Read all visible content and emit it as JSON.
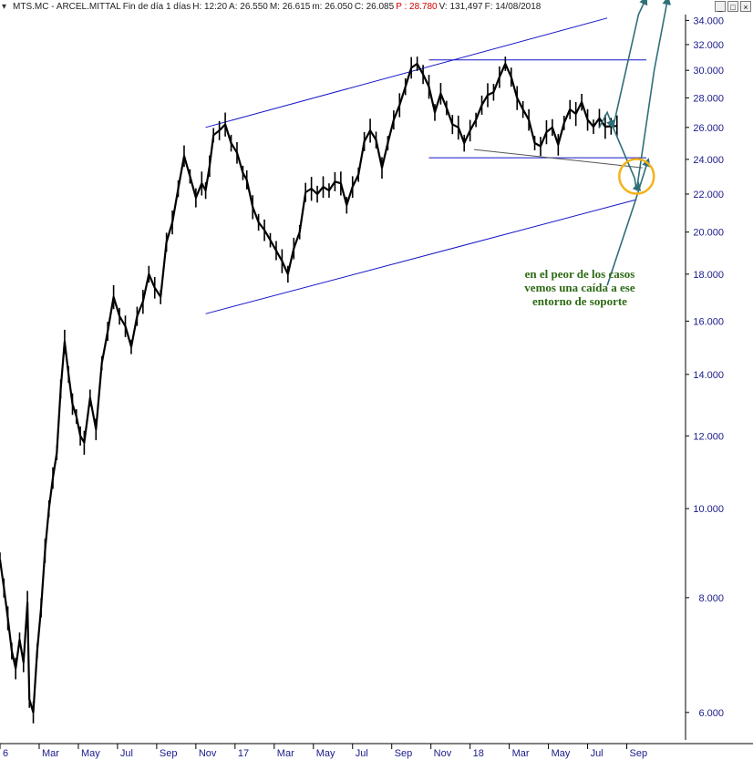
{
  "header": {
    "symbol": "MTS.MC - ARCEL.MITTAL",
    "period": "Fin de día 1 días",
    "high": "H: 12:20",
    "ask": "A: 26.550",
    "max": "M: 26.615",
    "min": "m: 26.050",
    "close": "C: 26.085",
    "prev": "P : 28.780",
    "volume": "V: 131,497",
    "date": "F: 14/08/2018"
  },
  "window_buttons": [
    "_",
    "□",
    "×"
  ],
  "colors": {
    "price": "#000000",
    "channel": "#1515c8",
    "projection": "#2f6f78",
    "highlight_circle": "#f5b21a",
    "annotation": "#2e6b14",
    "axis_text": "#1a1a8a"
  },
  "chart_data": {
    "type": "line",
    "title": "MTS.MC - ARCEL.MITTAL",
    "y_scale": "log",
    "ylim": [
      5.6,
      34.5
    ],
    "y_ticks": [
      "6.000",
      "8.000",
      "10.000",
      "12.000",
      "14.000",
      "16.000",
      "18.000",
      "20.000",
      "22.000",
      "24.000",
      "26.000",
      "28.000",
      "30.000",
      "32.000",
      "34.000"
    ],
    "x_ticks": [
      "6",
      "Mar",
      "May",
      "Jul",
      "Sep",
      "Nov",
      "17",
      "Mar",
      "May",
      "Jul",
      "Sep",
      "Nov",
      "18",
      "Mar",
      "May",
      "Jul",
      "Sep"
    ],
    "x_tick_month_index": [
      0,
      2,
      4,
      6,
      8,
      10,
      12,
      14,
      16,
      18,
      20,
      22,
      24,
      26,
      28,
      30,
      32
    ],
    "xlim": [
      0,
      35
    ],
    "series": [
      {
        "x": [
          0,
          0.2,
          0.4,
          0.6,
          0.8,
          1.0,
          1.2,
          1.4,
          1.5,
          1.7,
          1.9,
          2.1,
          2.3,
          2.5,
          2.7,
          2.9,
          3.1,
          3.3,
          3.5,
          3.7,
          3.9,
          4.1,
          4.3,
          4.6,
          4.9,
          5.2,
          5.5,
          5.8,
          6.1,
          6.4,
          6.7,
          7.0,
          7.3,
          7.6,
          7.9,
          8.2,
          8.5,
          8.8,
          9.1,
          9.4,
          9.7,
          10.0,
          10.3,
          10.5,
          10.7,
          10.9,
          11.2,
          11.5,
          11.8,
          12.1,
          12.4,
          12.6,
          12.9,
          13.2,
          13.5,
          13.8,
          14.1,
          14.4,
          14.7,
          15.0,
          15.3,
          15.6,
          15.9,
          16.2,
          16.5,
          16.8,
          17.1,
          17.4,
          17.7,
          18.0,
          18.3,
          18.6,
          18.9,
          19.2,
          19.5,
          19.8,
          20.1,
          20.4,
          20.7,
          21.0,
          21.3,
          21.6,
          21.9,
          22.2,
          22.5,
          22.8,
          23.1,
          23.4,
          23.7,
          24.0,
          24.3,
          24.6,
          24.9,
          25.2,
          25.5,
          25.8,
          26.1,
          26.4,
          26.7,
          27.0,
          27.3,
          27.6,
          27.9,
          28.2,
          28.5,
          28.8,
          29.1,
          29.4,
          29.7,
          30.0,
          30.3,
          30.6,
          30.9,
          31.2,
          31.5
        ],
        "values": [
          8.8,
          8.2,
          7.6,
          7.0,
          6.7,
          7.2,
          6.8,
          7.9,
          6.2,
          6.0,
          7.0,
          7.8,
          9.0,
          10.0,
          10.8,
          11.5,
          13.5,
          15.2,
          14.0,
          13.0,
          12.6,
          12.0,
          11.8,
          13.2,
          12.2,
          14.4,
          15.6,
          17.0,
          16.2,
          15.8,
          15.0,
          16.2,
          16.8,
          18.0,
          17.4,
          17.0,
          19.5,
          20.5,
          22.3,
          24.2,
          23.0,
          21.8,
          22.6,
          22.2,
          23.6,
          25.5,
          25.8,
          26.2,
          25.0,
          24.4,
          23.2,
          22.8,
          21.3,
          20.5,
          20.1,
          19.6,
          19.1,
          18.6,
          18.0,
          19.2,
          20.0,
          22.1,
          22.3,
          22.0,
          22.4,
          22.2,
          22.7,
          22.6,
          21.4,
          22.4,
          23.1,
          25.1,
          25.8,
          25.2,
          23.5,
          25.0,
          26.5,
          27.5,
          28.8,
          30.2,
          30.5,
          29.7,
          28.8,
          27.0,
          28.3,
          27.3,
          26.2,
          26.0,
          25.0,
          25.8,
          26.5,
          27.5,
          28.2,
          28.4,
          29.5,
          30.5,
          29.5,
          28.0,
          27.2,
          26.5,
          25.0,
          24.8,
          25.7,
          26.0,
          24.9,
          26.3,
          27.2,
          26.9,
          27.7,
          26.5,
          26.05,
          26.6,
          26.05,
          26.08,
          26.09
        ]
      }
    ],
    "lines": [
      {
        "kind": "channel_upper",
        "x": [
          10.5,
          31.0
        ],
        "y": [
          26.0,
          34.2
        ]
      },
      {
        "kind": "channel_lower",
        "x": [
          10.5,
          32.5
        ],
        "y": [
          16.3,
          21.7
        ]
      },
      {
        "kind": "resistance",
        "x": [
          21.9,
          33.0
        ],
        "y": [
          30.8,
          30.8
        ]
      },
      {
        "kind": "support",
        "x": [
          21.9,
          33.0
        ],
        "y": [
          24.1,
          24.1
        ]
      },
      {
        "kind": "trendline",
        "x": [
          24.2,
          32.8
        ],
        "y": [
          24.6,
          23.5
        ]
      }
    ],
    "projections": [
      {
        "x": [
          30.6,
          31.0,
          31.3
        ],
        "y": [
          26.0,
          27.0,
          26.0
        ]
      },
      {
        "x": [
          31.3,
          32.6,
          33.0
        ],
        "y": [
          26.0,
          34.5,
          36.0
        ]
      },
      {
        "x": [
          31.3,
          32.4,
          32.5,
          32.6
        ],
        "y": [
          26.0,
          22.9,
          22.2,
          22.6
        ]
      },
      {
        "x": [
          32.5,
          33.4,
          34.1
        ],
        "y": [
          22.2,
          30.0,
          36.0
        ]
      },
      {
        "x": [
          31.0,
          32.4,
          33.1
        ],
        "y": [
          17.5,
          21.5,
          24.0
        ]
      }
    ],
    "highlight": {
      "x": 32.5,
      "y": 23.0
    },
    "annotations": [
      "en el peor de los casos",
      "vemos una caída a ese",
      "entorno de soporte"
    ],
    "grid": false,
    "legend": "none"
  }
}
